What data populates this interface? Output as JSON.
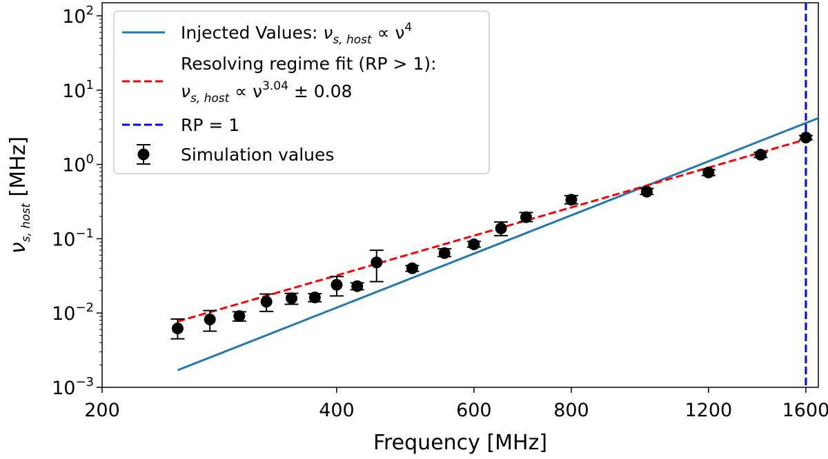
{
  "chart_data": {
    "type": "scatter",
    "xlabel": "Frequency [MHz]",
    "ylabel": "ν_{s, host} [MHz]",
    "xscale": "log",
    "yscale": "log",
    "xlim": [
      200,
      1660
    ],
    "ylim": [
      0.001,
      150
    ],
    "x_ticks": [
      200,
      400,
      600,
      800,
      1200,
      1600
    ],
    "x_tick_labels": [
      "200",
      "400",
      "600",
      "800",
      "1200",
      "1600"
    ],
    "y_ticks": [
      0.001,
      0.01,
      0.1,
      1,
      10,
      100
    ],
    "y_tick_labels": [
      {
        "base": "10",
        "exp": "−3"
      },
      {
        "base": "10",
        "exp": "−2"
      },
      {
        "base": "10",
        "exp": "−1"
      },
      {
        "base": "10",
        "exp": "0"
      },
      {
        "base": "10",
        "exp": "1"
      },
      {
        "base": "10",
        "exp": "2"
      }
    ],
    "series": [
      {
        "name": "Injected Values",
        "kind": "line",
        "color": "#1f77b4",
        "x": [
          250,
          1660
        ],
        "y": [
          0.0017,
          4.2
        ]
      },
      {
        "name": "Resolving regime fit (RP > 1)",
        "kind": "dashed-line",
        "color": "#ff0000",
        "exponent": 3.04,
        "exponent_err": 0.08,
        "x_range": [
          250,
          1600
        ],
        "ref_x": 1000,
        "ref_y": 0.52
      },
      {
        "name": "RP = 1",
        "kind": "vline",
        "color": "#0000ee",
        "x": 1600
      },
      {
        "name": "Simulation values",
        "kind": "errorbar",
        "color": "#000000",
        "x": [
          250,
          275,
          300,
          325,
          350,
          375,
          400,
          425,
          450,
          500,
          550,
          600,
          650,
          700,
          800,
          1000,
          1200,
          1400,
          1600
        ],
        "y": [
          0.0062,
          0.0082,
          0.0091,
          0.0142,
          0.0158,
          0.0162,
          0.024,
          0.023,
          0.048,
          0.04,
          0.064,
          0.084,
          0.138,
          0.195,
          0.335,
          0.43,
          0.78,
          1.35,
          2.3
        ],
        "y_low": [
          0.0045,
          0.0057,
          0.0078,
          0.0105,
          0.0131,
          0.0142,
          0.017,
          0.0206,
          0.0265,
          0.0365,
          0.0575,
          0.077,
          0.11,
          0.17,
          0.295,
          0.395,
          0.71,
          1.24,
          2.15
        ],
        "y_high": [
          0.0083,
          0.0108,
          0.0104,
          0.018,
          0.0184,
          0.0182,
          0.031,
          0.0255,
          0.07,
          0.0435,
          0.073,
          0.092,
          0.168,
          0.225,
          0.38,
          0.475,
          0.85,
          1.46,
          2.45
        ]
      }
    ],
    "legend": {
      "position": "top-left",
      "entries": [
        {
          "label_text": "Injected Values: ",
          "formula_sym": "ν",
          "formula_sub": "s, host",
          "formula_rest": " ∝ ν",
          "formula_sup": "4"
        },
        {
          "label_text": "Resolving regime fit (RP > 1):",
          "formula_sym": "ν",
          "formula_sub": "s, host",
          "formula_rest": " ∝ ν",
          "formula_sup": "3.04",
          "formula_tail": " ± 0.08"
        },
        {
          "label_text": "RP = 1"
        },
        {
          "label_text": "Simulation values"
        }
      ]
    }
  }
}
